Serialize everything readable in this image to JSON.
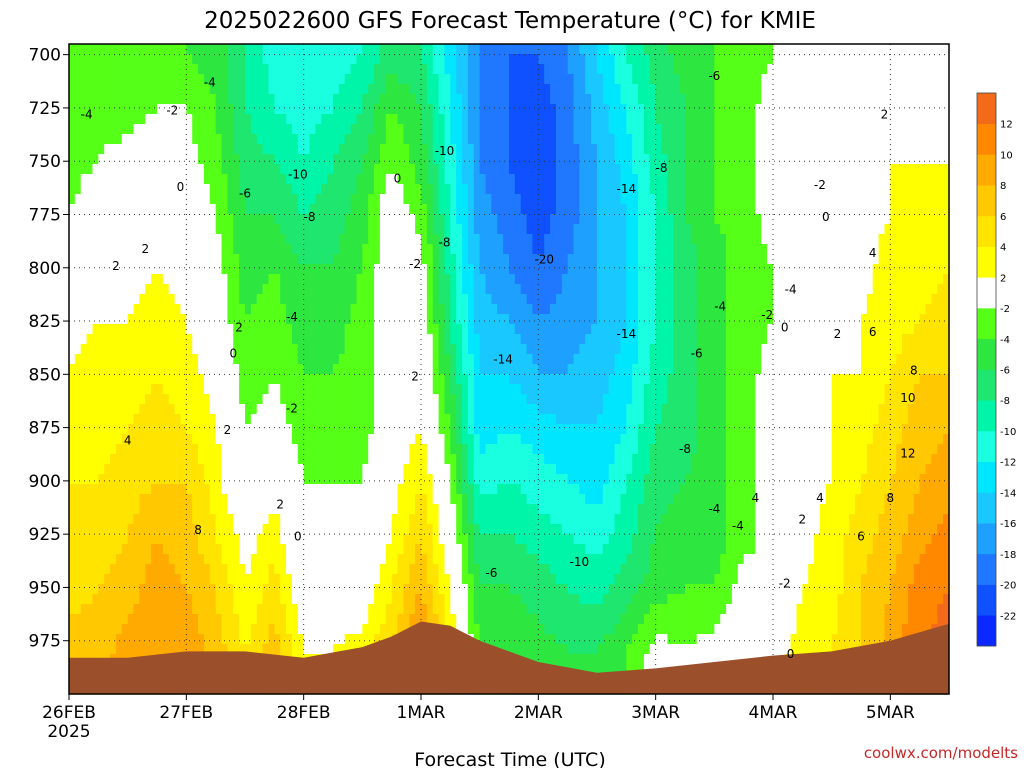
{
  "colors": {
    "background": "#ffffff",
    "ground": "#9b4f2b",
    "zero_contour": "#b0106a",
    "credit": "#c62828",
    "bands": [
      {
        "from": -24,
        "to": -22,
        "color": "#0a28ff"
      },
      {
        "from": -22,
        "to": -20,
        "color": "#0f50ff"
      },
      {
        "from": -20,
        "to": -18,
        "color": "#1f78ff"
      },
      {
        "from": -18,
        "to": -16,
        "color": "#1ea0ff"
      },
      {
        "from": -16,
        "to": -14,
        "color": "#19c8ff"
      },
      {
        "from": -14,
        "to": -12,
        "color": "#00e6ff"
      },
      {
        "from": -12,
        "to": -10,
        "color": "#19ffe0"
      },
      {
        "from": -10,
        "to": -8,
        "color": "#00f5a8"
      },
      {
        "from": -8,
        "to": -6,
        "color": "#1fe66e"
      },
      {
        "from": -6,
        "to": -4,
        "color": "#2ee640"
      },
      {
        "from": -4,
        "to": -2,
        "color": "#55ff17"
      },
      {
        "from": -2,
        "to": 2,
        "color": "#ffffff"
      },
      {
        "from": 2,
        "to": 4,
        "color": "#ffff00"
      },
      {
        "from": 4,
        "to": 6,
        "color": "#ffe400"
      },
      {
        "from": 6,
        "to": 8,
        "color": "#ffc800"
      },
      {
        "from": 8,
        "to": 10,
        "color": "#ffaa00"
      },
      {
        "from": 10,
        "to": 12,
        "color": "#ff8800"
      },
      {
        "from": 12,
        "to": 14,
        "color": "#f26a1a"
      }
    ]
  },
  "chart_data": {
    "type": "heatmap",
    "title": "2025022600 GFS Forecast Temperature (°C) for KMIE",
    "xlabel": "Forecast Time (UTC)",
    "ylabel": "",
    "credit": "coolwx.com/modelts",
    "x_unit": "days since 26FEB 2025 00 UTC",
    "xlim": [
      0,
      7.5
    ],
    "x_ticks": [
      {
        "value": 0,
        "label": "26FEB",
        "sublabel": "2025"
      },
      {
        "value": 1,
        "label": "27FEB"
      },
      {
        "value": 2,
        "label": "28FEB"
      },
      {
        "value": 3,
        "label": "1MAR"
      },
      {
        "value": 4,
        "label": "2MAR"
      },
      {
        "value": 5,
        "label": "3MAR"
      },
      {
        "value": 6,
        "label": "4MAR"
      },
      {
        "value": 7,
        "label": "5MAR"
      }
    ],
    "y_unit": "hPa",
    "ylim": [
      1000,
      695
    ],
    "y_ticks": [
      700,
      725,
      750,
      775,
      800,
      825,
      850,
      875,
      900,
      925,
      950,
      975
    ],
    "grid": true,
    "colorbar": {
      "placement": "right",
      "ticks": [
        12,
        10,
        8,
        6,
        4,
        2,
        -2,
        -4,
        -6,
        -8,
        -10,
        -12,
        -14,
        -16,
        -18,
        -20,
        -22
      ]
    },
    "profile_levels_hPa": [
      980,
      950,
      925,
      900,
      875,
      850,
      825,
      800,
      775,
      750,
      725,
      700
    ],
    "profiles": [
      {
        "t": 0.0,
        "temps": [
          7,
          5,
          5,
          4,
          3,
          2,
          1,
          0,
          -2,
          -3,
          -4,
          -4
        ]
      },
      {
        "t": 0.25,
        "temps": [
          7,
          6,
          5,
          4,
          3,
          3,
          2,
          1,
          0,
          -2,
          -3,
          -4
        ]
      },
      {
        "t": 0.5,
        "temps": [
          9,
          7,
          6,
          5,
          4,
          3,
          2,
          1,
          0,
          -1,
          -3,
          -4
        ]
      },
      {
        "t": 0.75,
        "temps": [
          10,
          9,
          8,
          6,
          5,
          4,
          3,
          2,
          1,
          0,
          -2,
          -4
        ]
      },
      {
        "t": 1.0,
        "temps": [
          10,
          8,
          7,
          6,
          4,
          3,
          2,
          1,
          0,
          -1,
          -2,
          -4
        ]
      },
      {
        "t": 1.25,
        "temps": [
          7,
          6,
          4,
          3,
          2,
          1,
          0,
          -1,
          -2,
          -3,
          -4,
          -5
        ]
      },
      {
        "t": 1.5,
        "temps": [
          4,
          2,
          1,
          -1,
          -2,
          -3,
          -4,
          -5,
          -6,
          -7,
          -8,
          -8
        ]
      },
      {
        "t": 1.75,
        "temps": [
          7,
          5,
          3,
          1,
          -1,
          -2,
          -3,
          -4,
          -6,
          -8,
          -10,
          -11
        ]
      },
      {
        "t": 2.0,
        "temps": [
          2,
          0,
          -1,
          -2,
          -3,
          -4,
          -5,
          -6,
          -8,
          -10,
          -11,
          -11
        ]
      },
      {
        "t": 2.25,
        "temps": [
          2,
          1,
          -1,
          -2,
          -3,
          -4,
          -5,
          -6,
          -7,
          -8,
          -10,
          -11
        ]
      },
      {
        "t": 2.5,
        "temps": [
          3,
          0,
          -1,
          -2,
          -3,
          -3,
          -3,
          -4,
          -5,
          -6,
          -8,
          -10
        ]
      },
      {
        "t": 2.75,
        "temps": [
          6,
          4,
          2,
          1,
          0,
          0,
          0,
          0,
          0,
          -2,
          -4,
          -7
        ]
      },
      {
        "t": 3.0,
        "temps": [
          11,
          8,
          6,
          4,
          2,
          1,
          0,
          -1,
          -3,
          -5,
          -6,
          -8
        ]
      },
      {
        "t": 3.25,
        "temps": [
          4,
          2,
          0,
          -2,
          -4,
          -6,
          -8,
          -9,
          -10,
          -11,
          -12,
          -13
        ]
      },
      {
        "t": 3.5,
        "temps": [
          -4,
          -6,
          -8,
          -11,
          -13,
          -14,
          -15,
          -16,
          -17,
          -18,
          -18,
          -18
        ]
      },
      {
        "t": 3.75,
        "temps": [
          -4,
          -6,
          -8,
          -10,
          -12,
          -14,
          -16,
          -18,
          -19,
          -20,
          -20,
          -20
        ]
      },
      {
        "t": 4.0,
        "temps": [
          -5,
          -7,
          -9,
          -11,
          -13,
          -16,
          -18,
          -20,
          -21,
          -22,
          -21,
          -20
        ]
      },
      {
        "t": 4.25,
        "temps": [
          -6,
          -8,
          -10,
          -12,
          -14,
          -16,
          -17,
          -18,
          -19,
          -19,
          -19,
          -18
        ]
      },
      {
        "t": 4.5,
        "temps": [
          -6,
          -9,
          -11,
          -13,
          -14,
          -15,
          -16,
          -16,
          -16,
          -16,
          -15,
          -14
        ]
      },
      {
        "t": 4.75,
        "temps": [
          -4,
          -7,
          -9,
          -10,
          -12,
          -13,
          -14,
          -14,
          -14,
          -13,
          -12,
          -10
        ]
      },
      {
        "t": 5.0,
        "temps": [
          -1,
          -5,
          -6,
          -7,
          -8,
          -9,
          -10,
          -10,
          -10,
          -9,
          -8,
          -7
        ]
      },
      {
        "t": 5.25,
        "temps": [
          -2,
          -4,
          -5,
          -6,
          -7,
          -7,
          -7,
          -7,
          -6,
          -6,
          -6,
          -5
        ]
      },
      {
        "t": 5.5,
        "temps": [
          -1,
          -4,
          -5,
          -5,
          -5,
          -5,
          -5,
          -5,
          -4,
          -4,
          -4,
          -4
        ]
      },
      {
        "t": 5.75,
        "temps": [
          1,
          -1,
          -3,
          -3,
          -3,
          -3,
          -3,
          -3,
          -3,
          -3,
          -3,
          -3
        ]
      },
      {
        "t": 6.0,
        "temps": [
          1,
          -1,
          -1,
          -1,
          -1,
          -1,
          -2,
          -2,
          -1,
          -1,
          -1,
          -2
        ]
      },
      {
        "t": 6.25,
        "temps": [
          3,
          2,
          1,
          1,
          1,
          1,
          1,
          0,
          0,
          0,
          0,
          -1
        ]
      },
      {
        "t": 6.5,
        "temps": [
          4,
          3,
          3,
          2,
          2,
          2,
          1,
          1,
          0,
          0,
          0,
          0
        ]
      },
      {
        "t": 6.75,
        "temps": [
          6,
          6,
          5,
          4,
          3,
          2,
          2,
          1,
          1,
          1,
          1,
          0
        ]
      },
      {
        "t": 7.0,
        "temps": [
          9,
          8,
          7,
          6,
          5,
          4,
          3,
          3,
          2,
          2,
          1,
          0
        ]
      },
      {
        "t": 7.25,
        "temps": [
          12,
          11,
          9,
          8,
          7,
          6,
          4,
          3,
          3,
          2,
          1,
          0
        ]
      },
      {
        "t": 7.5,
        "temps": [
          13,
          12,
          11,
          9,
          8,
          6,
          5,
          4,
          3,
          2,
          1,
          -1
        ]
      }
    ],
    "surface_pressure_hPa": [
      {
        "t": 0.0,
        "p": 983
      },
      {
        "t": 0.5,
        "p": 983
      },
      {
        "t": 1.0,
        "p": 980
      },
      {
        "t": 1.5,
        "p": 980
      },
      {
        "t": 2.0,
        "p": 983
      },
      {
        "t": 2.5,
        "p": 978
      },
      {
        "t": 2.75,
        "p": 973
      },
      {
        "t": 3.0,
        "p": 966
      },
      {
        "t": 3.25,
        "p": 968
      },
      {
        "t": 3.5,
        "p": 975
      },
      {
        "t": 4.0,
        "p": 985
      },
      {
        "t": 4.5,
        "p": 990
      },
      {
        "t": 5.0,
        "p": 988
      },
      {
        "t": 5.5,
        "p": 985
      },
      {
        "t": 6.0,
        "p": 982
      },
      {
        "t": 6.5,
        "p": 980
      },
      {
        "t": 7.0,
        "p": 975
      },
      {
        "t": 7.5,
        "p": 967
      }
    ],
    "contour_labels": [
      {
        "t": 0.15,
        "p": 730,
        "text": "-4"
      },
      {
        "t": 0.88,
        "p": 728,
        "text": "-2"
      },
      {
        "t": 1.2,
        "p": 715,
        "text": "-4"
      },
      {
        "t": 0.95,
        "p": 764,
        "text": "0"
      },
      {
        "t": 0.4,
        "p": 801,
        "text": "2"
      },
      {
        "t": 0.65,
        "p": 793,
        "text": "2"
      },
      {
        "t": 1.45,
        "p": 830,
        "text": "2"
      },
      {
        "t": 1.4,
        "p": 842,
        "text": "0"
      },
      {
        "t": 1.35,
        "p": 878,
        "text": "2"
      },
      {
        "t": 0.5,
        "p": 883,
        "text": "4"
      },
      {
        "t": 1.1,
        "p": 925,
        "text": "8"
      },
      {
        "t": 1.8,
        "p": 913,
        "text": "2"
      },
      {
        "t": 1.95,
        "p": 928,
        "text": "0"
      },
      {
        "t": 1.5,
        "p": 767,
        "text": "-6"
      },
      {
        "t": 1.9,
        "p": 825,
        "text": "-4"
      },
      {
        "t": 1.9,
        "p": 868,
        "text": "-2"
      },
      {
        "t": 1.95,
        "p": 758,
        "text": "-10"
      },
      {
        "t": 2.05,
        "p": 778,
        "text": "-8"
      },
      {
        "t": 2.8,
        "p": 760,
        "text": "0"
      },
      {
        "t": 2.95,
        "p": 800,
        "text": "-2"
      },
      {
        "t": 2.95,
        "p": 853,
        "text": "2"
      },
      {
        "t": 3.2,
        "p": 747,
        "text": "-10"
      },
      {
        "t": 3.2,
        "p": 790,
        "text": "-8"
      },
      {
        "t": 3.7,
        "p": 845,
        "text": "-14"
      },
      {
        "t": 3.6,
        "p": 945,
        "text": "-6"
      },
      {
        "t": 4.05,
        "p": 798,
        "text": "-20"
      },
      {
        "t": 4.75,
        "p": 765,
        "text": "-14"
      },
      {
        "t": 4.75,
        "p": 833,
        "text": "-14"
      },
      {
        "t": 4.35,
        "p": 940,
        "text": "-10"
      },
      {
        "t": 5.5,
        "p": 712,
        "text": "-6"
      },
      {
        "t": 5.05,
        "p": 755,
        "text": "-8"
      },
      {
        "t": 5.35,
        "p": 842,
        "text": "-6"
      },
      {
        "t": 5.25,
        "p": 887,
        "text": "-8"
      },
      {
        "t": 5.55,
        "p": 820,
        "text": "-4"
      },
      {
        "t": 5.5,
        "p": 915,
        "text": "-4"
      },
      {
        "t": 5.7,
        "p": 923,
        "text": "-4"
      },
      {
        "t": 6.15,
        "p": 812,
        "text": "-4"
      },
      {
        "t": 5.95,
        "p": 824,
        "text": "-2"
      },
      {
        "t": 6.1,
        "p": 830,
        "text": "0"
      },
      {
        "t": 6.4,
        "p": 763,
        "text": "-2"
      },
      {
        "t": 6.45,
        "p": 778,
        "text": "0"
      },
      {
        "t": 6.55,
        "p": 833,
        "text": "2"
      },
      {
        "t": 6.85,
        "p": 832,
        "text": "6"
      },
      {
        "t": 6.85,
        "p": 795,
        "text": "4"
      },
      {
        "t": 6.95,
        "p": 730,
        "text": "2"
      },
      {
        "t": 6.4,
        "p": 910,
        "text": "4"
      },
      {
        "t": 6.25,
        "p": 920,
        "text": "2"
      },
      {
        "t": 5.85,
        "p": 910,
        "text": "4"
      },
      {
        "t": 6.1,
        "p": 950,
        "text": "-2"
      },
      {
        "t": 6.15,
        "p": 983,
        "text": "0"
      },
      {
        "t": 7.0,
        "p": 910,
        "text": "8"
      },
      {
        "t": 6.75,
        "p": 928,
        "text": "6"
      },
      {
        "t": 7.2,
        "p": 850,
        "text": "8"
      },
      {
        "t": 7.15,
        "p": 863,
        "text": "10"
      },
      {
        "t": 7.15,
        "p": 889,
        "text": "12"
      }
    ]
  }
}
